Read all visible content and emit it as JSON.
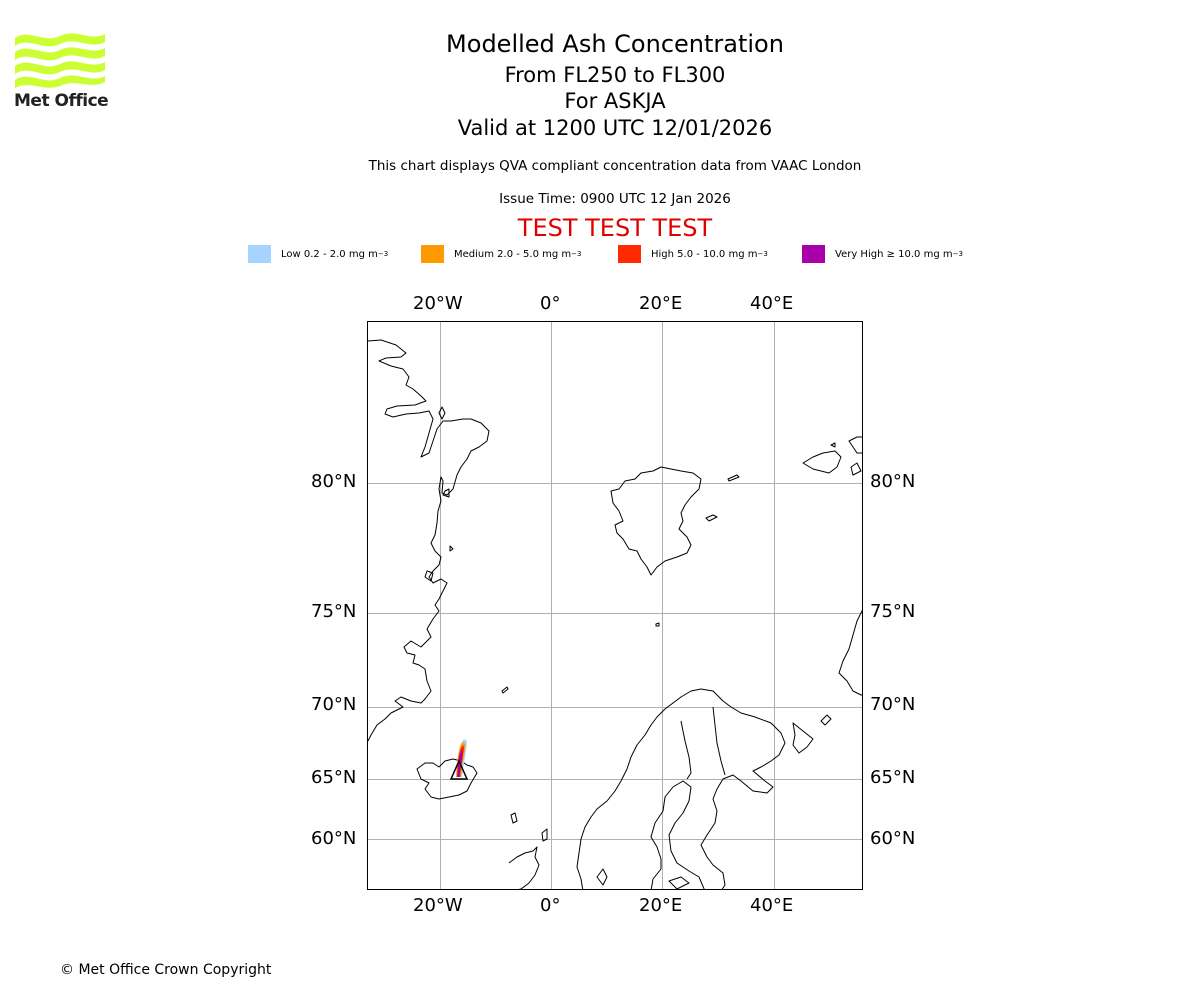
{
  "logo": {
    "text": "Met Office",
    "color": "#ccff33"
  },
  "header": {
    "title": "Modelled Ash Concentration",
    "levels": "From FL250 to FL300",
    "volcano": "For ASKJA",
    "valid": "Valid at 1200 UTC 12/01/2026",
    "description": "This chart displays QVA compliant concentration data from VAAC London",
    "issue_time": "Issue Time: 0900 UTC 12 Jan 2026",
    "test_banner": "TEST TEST TEST"
  },
  "legend": [
    {
      "label": "Low 0.2 - 2.0 mg m",
      "unit_exp": "−3",
      "color": "#a6d4ff"
    },
    {
      "label": "Medium 2.0 - 5.0 mg m",
      "unit_exp": "−3",
      "color": "#ff9900"
    },
    {
      "label": "High 5.0 - 10.0 mg m",
      "unit_exp": "−3",
      "color": "#ff2a00"
    },
    {
      "label": "Very High  ≥  10.0 mg m",
      "unit_exp": "−3",
      "color": "#aa00aa"
    }
  ],
  "map": {
    "lon_ticks": [
      "20°W",
      "0°",
      "20°E",
      "40°E"
    ],
    "lat_ticks": [
      "80°N",
      "75°N",
      "70°N",
      "65°N",
      "60°N"
    ],
    "volcano_symbol": "triangle-icon",
    "colors": {
      "coast": "#000000",
      "grid": "#b0b0b0",
      "ash_low": "#a6d4ff",
      "ash_medium": "#ff9900",
      "ash_high": "#ff2a00",
      "ash_very_high": "#aa00aa"
    }
  },
  "footer": {
    "copyright": "© Met Office Crown Copyright"
  }
}
